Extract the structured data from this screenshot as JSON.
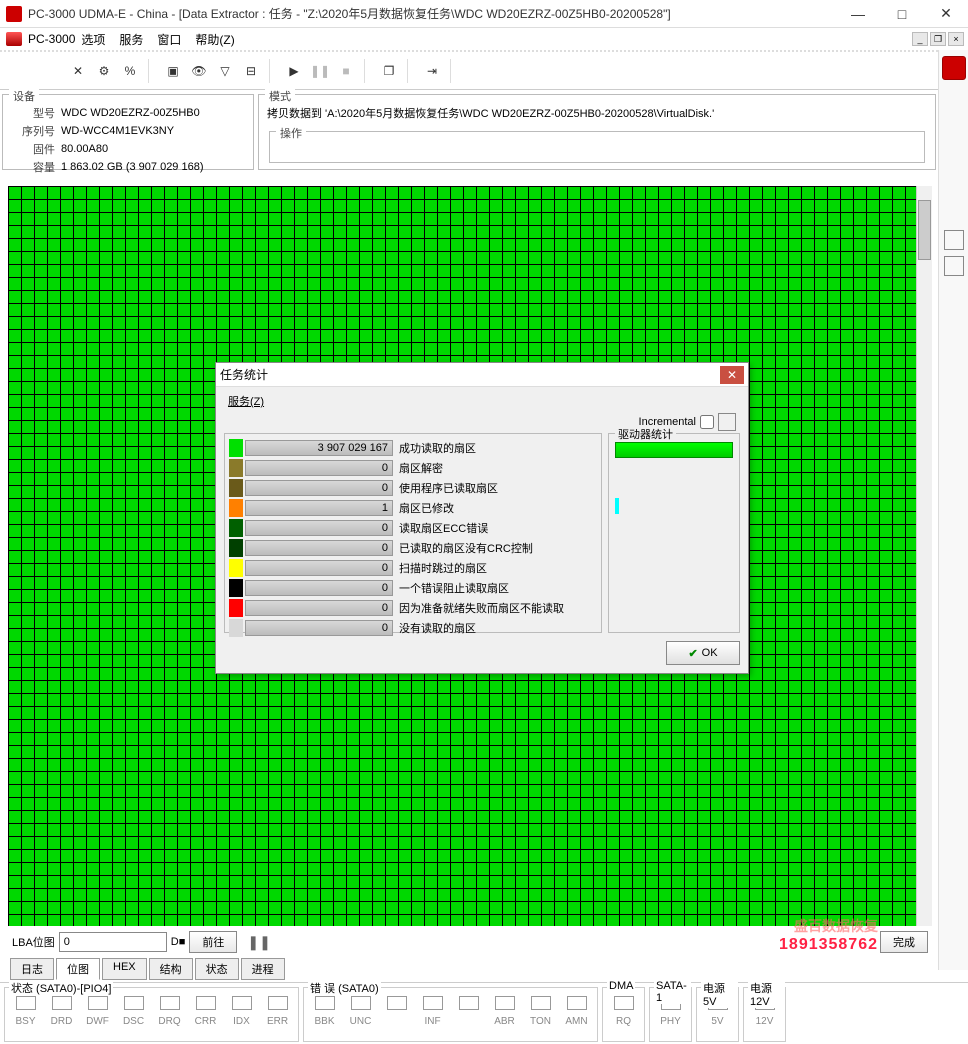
{
  "titlebar": {
    "text": "PC-3000 UDMA-E - China - [Data Extractor : 任务 - \"Z:\\2020年5月数据恢复任务\\WDC WD20EZRZ-00Z5HB0-20200528\"]"
  },
  "subtitlebar": {
    "app": "PC-3000",
    "menu": [
      "选项",
      "服务",
      "窗口",
      "帮助(Z)"
    ]
  },
  "device": {
    "panel_title": "设备",
    "model_lbl": "型号",
    "model": "WDC WD20EZRZ-00Z5HB0",
    "serial_lbl": "序列号",
    "serial": "WD-WCC4M1EVK3NY",
    "fw_lbl": "固件",
    "fw": "80.00A80",
    "cap_lbl": "容量",
    "cap": "1 863.02 GB (3 907 029 168)"
  },
  "mode": {
    "panel_title": "模式",
    "text": "拷贝数据到 'A:\\2020年5月数据恢复任务\\WDC WD20EZRZ-00Z5HB0-20200528\\VirtualDisk.'",
    "op_title": "操作"
  },
  "map_controls": {
    "lba_label": "LBA位图",
    "value": "0",
    "end_label": "D■",
    "go_btn": "前往",
    "finish_btn": "完成",
    "watermark_phone": "1891358762",
    "watermark_text": "盛百数据恢复"
  },
  "tabs": [
    "日志",
    "位图",
    "HEX",
    "结构",
    "状态",
    "进程"
  ],
  "active_tab_index": 1,
  "dialog": {
    "title": "任务统计",
    "service_label": "服务(Z)",
    "incremental_label": "Incremental",
    "drive_stats_label": "驱动器统计",
    "ok_label": "OK",
    "stats": [
      {
        "color": "#00e000",
        "value": "3 907 029 167",
        "label": "成功读取的扇区"
      },
      {
        "color": "#8a7a2a",
        "value": "0",
        "label": "扇区解密"
      },
      {
        "color": "#6a5a1a",
        "value": "0",
        "label": "使用程序已读取扇区"
      },
      {
        "color": "#ff8000",
        "value": "1",
        "label": "扇区已修改"
      },
      {
        "color": "#006000",
        "value": "0",
        "label": "读取扇区ECC错误"
      },
      {
        "color": "#004000",
        "value": "0",
        "label": "已读取的扇区没有CRC控制"
      },
      {
        "color": "#ffff00",
        "value": "0",
        "label": "扫描时跳过的扇区"
      },
      {
        "color": "#000000",
        "value": "0",
        "label": "一个错误阻止读取扇区"
      },
      {
        "color": "#ff0000",
        "value": "0",
        "label": "因为准备就绪失败而扇区不能读取"
      },
      {
        "color": "#d8d8d8",
        "value": "0",
        "label": "没有读取的扇区"
      }
    ]
  },
  "status": {
    "group1_title": "状态 (SATA0)-[PIO4]",
    "group1": [
      "BSY",
      "DRD",
      "DWF",
      "DSC",
      "DRQ",
      "CRR",
      "IDX",
      "ERR"
    ],
    "group2_title": "错 误 (SATA0)",
    "group2": [
      "BBK",
      "UNC",
      "",
      "INF",
      "",
      "ABR",
      "TON",
      "AMN"
    ],
    "dma_title": "DMA",
    "dma": [
      "RQ"
    ],
    "sata_title": "SATA-1",
    "sata": [
      "PHY"
    ],
    "pwr5_title": "电源 5V",
    "pwr5": [
      "5V"
    ],
    "pwr12_title": "电源 12V",
    "pwr12": [
      "12V"
    ]
  },
  "colors": {
    "map_green": "#00d800",
    "dialog_close": "#c94f41"
  }
}
